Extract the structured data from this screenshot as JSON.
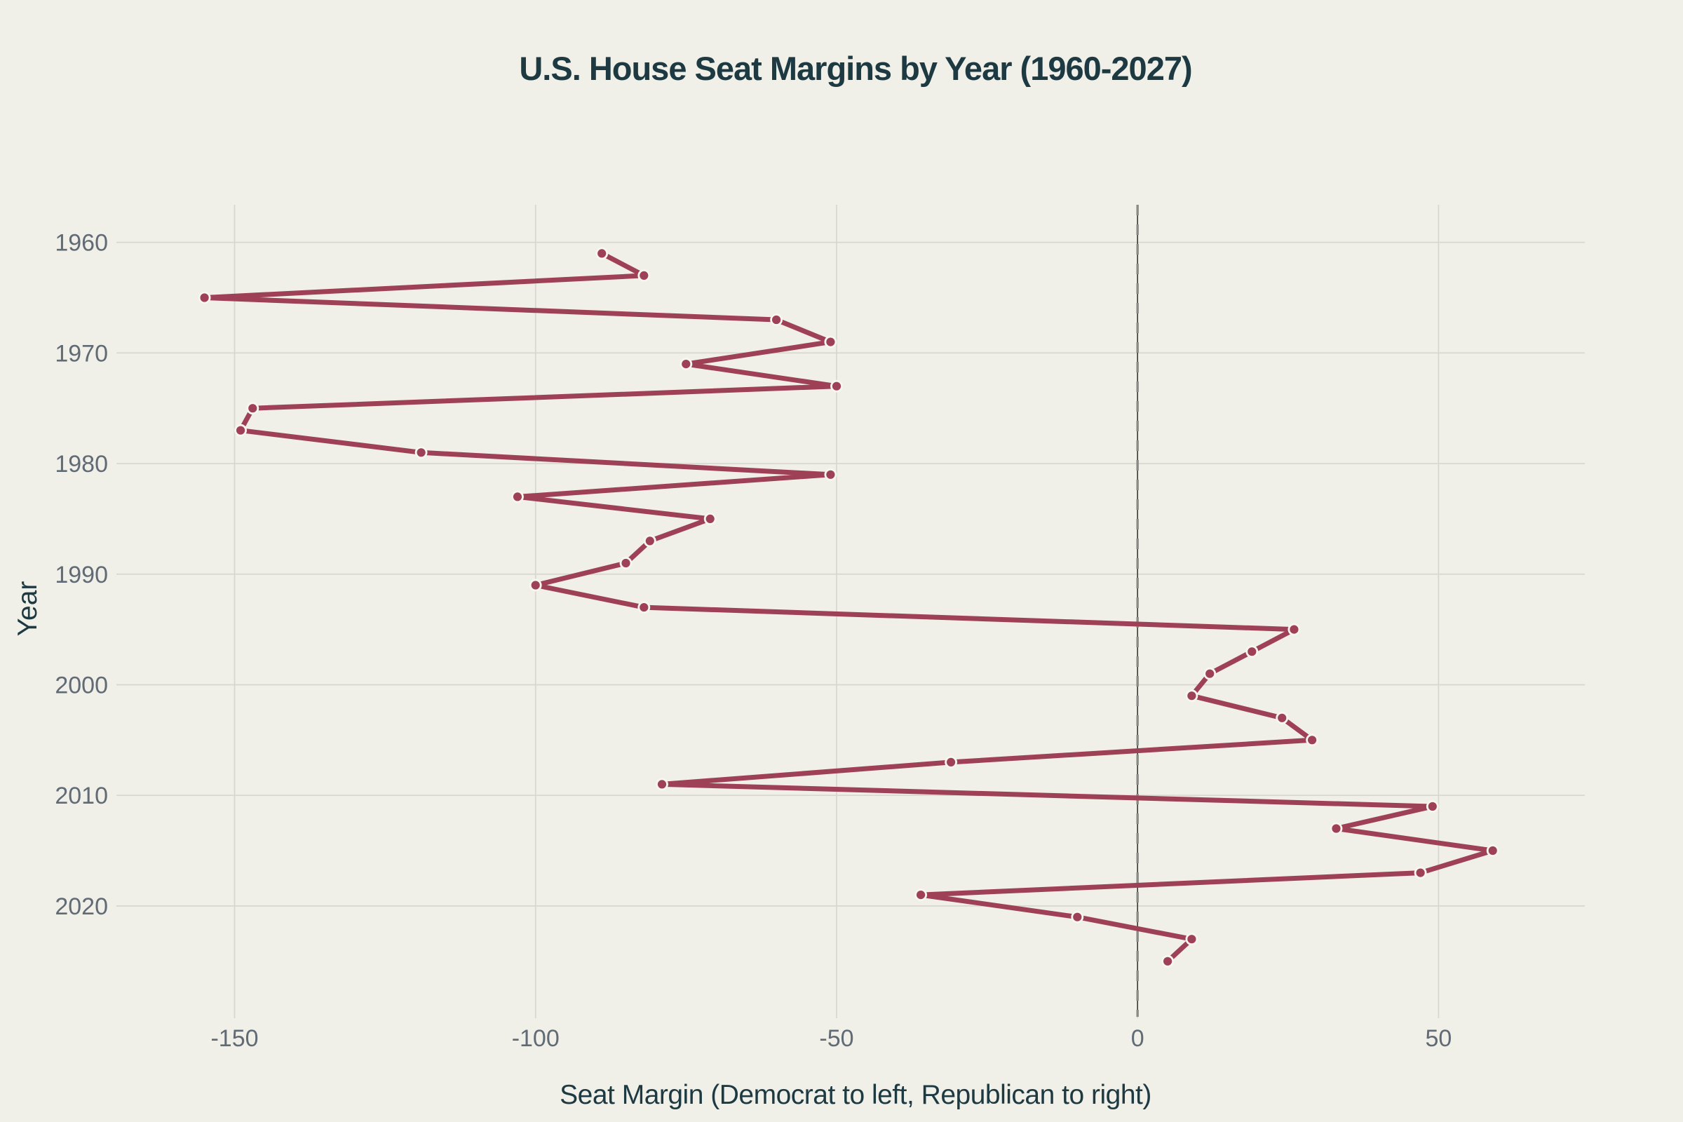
{
  "chart_data": {
    "type": "line",
    "title": "U.S. House Seat Margins by Year (1960-2027)",
    "xlabel": "Seat Margin (Democrat to left, Republican to right)",
    "ylabel": "Year",
    "orientation": "margin on x-axis, year on y-axis (years increase downward)",
    "x_ticks": [
      -150,
      -100,
      -50,
      0,
      50
    ],
    "x_tick_labels": [
      "-150",
      "-100",
      "-50",
      "0",
      "50"
    ],
    "y_ticks": [
      1960,
      1970,
      1980,
      1990,
      2000,
      2010,
      2020
    ],
    "y_tick_labels": [
      "1960",
      "1970",
      "1980",
      "1990",
      "2000",
      "2010",
      "2020"
    ],
    "xlim": [
      -168,
      74.3
    ],
    "ylim": [
      1956.6,
      2029.2
    ],
    "y_inverted": true,
    "grid": true,
    "zero_line_x": 0,
    "legend": "none",
    "points": [
      {
        "year": 1961,
        "margin": -89
      },
      {
        "year": 1963,
        "margin": -82
      },
      {
        "year": 1965,
        "margin": -155
      },
      {
        "year": 1967,
        "margin": -60
      },
      {
        "year": 1969,
        "margin": -51
      },
      {
        "year": 1971,
        "margin": -75
      },
      {
        "year": 1973,
        "margin": -50
      },
      {
        "year": 1975,
        "margin": -147
      },
      {
        "year": 1977,
        "margin": -149
      },
      {
        "year": 1979,
        "margin": -119
      },
      {
        "year": 1981,
        "margin": -51
      },
      {
        "year": 1983,
        "margin": -103
      },
      {
        "year": 1985,
        "margin": -71
      },
      {
        "year": 1987,
        "margin": -81
      },
      {
        "year": 1989,
        "margin": -85
      },
      {
        "year": 1991,
        "margin": -100
      },
      {
        "year": 1993,
        "margin": -82
      },
      {
        "year": 1995,
        "margin": 26
      },
      {
        "year": 1997,
        "margin": 19
      },
      {
        "year": 1999,
        "margin": 12
      },
      {
        "year": 2001,
        "margin": 9
      },
      {
        "year": 2003,
        "margin": 24
      },
      {
        "year": 2005,
        "margin": 29
      },
      {
        "year": 2007,
        "margin": -31
      },
      {
        "year": 2009,
        "margin": -79
      },
      {
        "year": 2011,
        "margin": 49
      },
      {
        "year": 2013,
        "margin": 33
      },
      {
        "year": 2015,
        "margin": 59
      },
      {
        "year": 2017,
        "margin": 47
      },
      {
        "year": 2019,
        "margin": -36
      },
      {
        "year": 2021,
        "margin": -10
      },
      {
        "year": 2023,
        "margin": 9
      },
      {
        "year": 2025,
        "margin": 5
      }
    ],
    "colors": {
      "background": "#f0efe8",
      "line": "#9e4156",
      "point_fill": "#9e4156",
      "point_ring": "#f7f6ef",
      "grid": "#d8d7ce",
      "zero_line_solid": "#3a3a38",
      "zero_line_dash": "#8a8a87",
      "tick_text": "#616b75",
      "title_text": "#1d3a43"
    }
  }
}
